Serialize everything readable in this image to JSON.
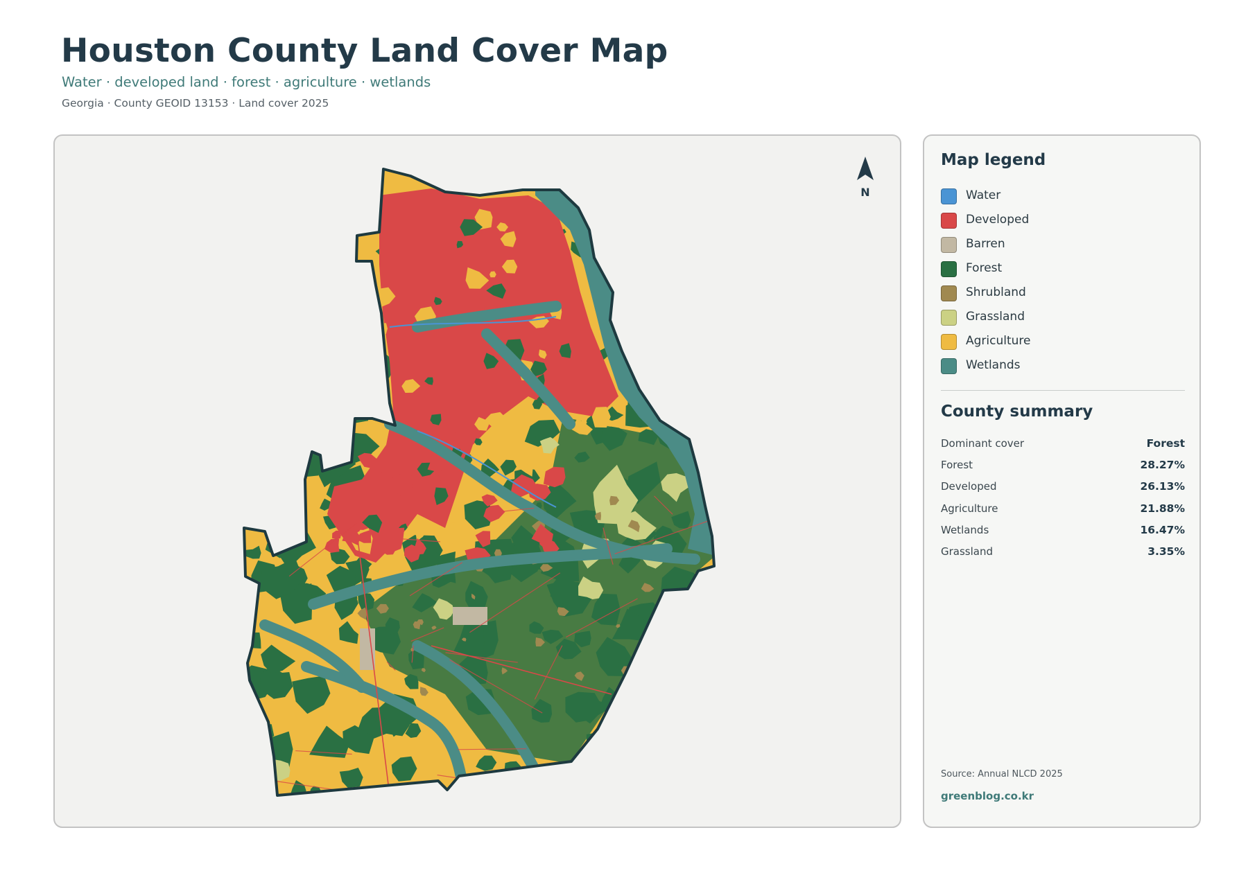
{
  "header": {
    "title": "Houston County Land Cover Map",
    "subtitle": "Water · developed land · forest · agriculture · wetlands",
    "meta": "Georgia · County GEOID 13153 · Land cover 2025"
  },
  "map": {
    "north_label": "N",
    "colors": {
      "water": "#4a94d4",
      "developed": "#d94848",
      "barren": "#c2b8a3",
      "forest": "#2a7043",
      "shrubland": "#a08950",
      "grassland": "#cbd184",
      "agriculture": "#efbb42",
      "wetlands": "#4b8c86",
      "boundary": "#1e3a40",
      "panel_bg": "#f2f2f0"
    }
  },
  "legend": {
    "title": "Map legend",
    "items": [
      {
        "label": "Water",
        "color": "#4a94d4"
      },
      {
        "label": "Developed",
        "color": "#d94848"
      },
      {
        "label": "Barren",
        "color": "#c2b8a3"
      },
      {
        "label": "Forest",
        "color": "#2a7043"
      },
      {
        "label": "Shrubland",
        "color": "#a08950"
      },
      {
        "label": "Grassland",
        "color": "#cbd184"
      },
      {
        "label": "Agriculture",
        "color": "#efbb42"
      },
      {
        "label": "Wetlands",
        "color": "#4b8c86"
      }
    ]
  },
  "summary": {
    "title": "County summary",
    "rows": [
      {
        "label": "Dominant cover",
        "value": "Forest"
      },
      {
        "label": "Forest",
        "value": "28.27%"
      },
      {
        "label": "Developed",
        "value": "26.13%"
      },
      {
        "label": "Agriculture",
        "value": "21.88%"
      },
      {
        "label": "Wetlands",
        "value": "16.47%"
      },
      {
        "label": "Grassland",
        "value": "3.35%"
      }
    ]
  },
  "footer": {
    "source": "Source: Annual NLCD 2025",
    "site": "greenblog.co.kr"
  }
}
